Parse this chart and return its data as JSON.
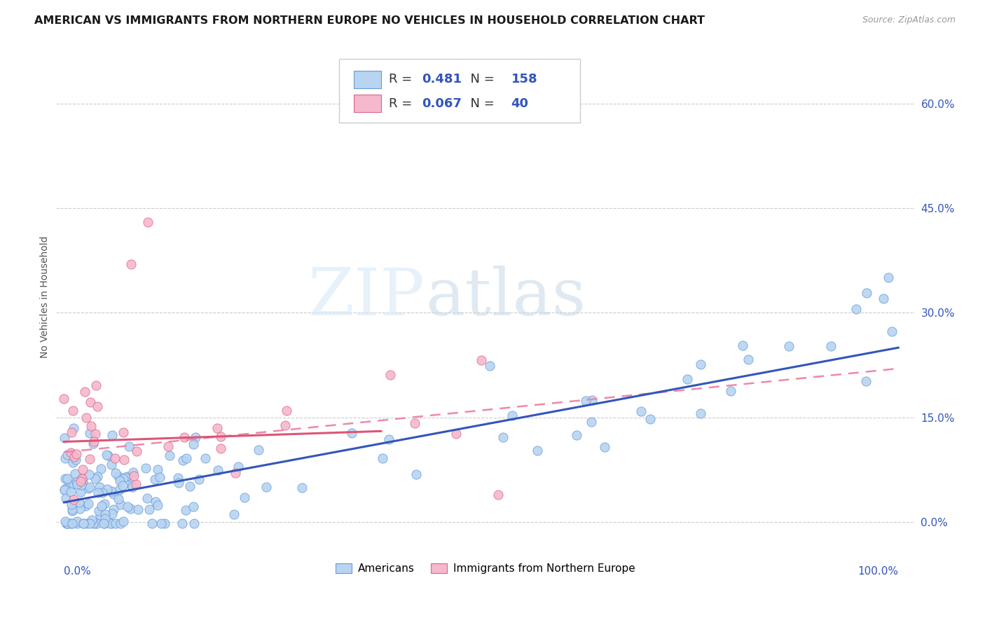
{
  "title": "AMERICAN VS IMMIGRANTS FROM NORTHERN EUROPE NO VEHICLES IN HOUSEHOLD CORRELATION CHART",
  "source": "Source: ZipAtlas.com",
  "ylabel": "No Vehicles in Household",
  "watermark_zip": "ZIP",
  "watermark_atlas": "atlas",
  "legend_blue_r_val": "0.481",
  "legend_blue_n_val": "158",
  "legend_pink_r_val": "0.067",
  "legend_pink_n_val": "40",
  "blue_label": "Americans",
  "pink_label": "Immigrants from Northern Europe",
  "xlim": [
    -0.01,
    1.02
  ],
  "ylim": [
    -0.035,
    0.68
  ],
  "yticks": [
    0.0,
    0.15,
    0.3,
    0.45,
    0.6
  ],
  "ytick_labels": [
    "0.0%",
    "15.0%",
    "30.0%",
    "45.0%",
    "60.0%"
  ],
  "x_left_label": "0.0%",
  "x_right_label": "100.0%",
  "blue_color": "#b8d4f0",
  "pink_color": "#f5b8cc",
  "blue_edge_color": "#6699dd",
  "pink_edge_color": "#dd6688",
  "blue_line_color": "#3355bb",
  "pink_solid_color": "#dd5577",
  "pink_dash_color": "#ee88aa",
  "background_color": "#ffffff",
  "grid_color": "#cccccc",
  "title_fontsize": 11.5,
  "tick_fontsize": 11,
  "ylabel_fontsize": 10,
  "legend_fontsize": 13,
  "blue_intercept": 0.028,
  "blue_slope": 0.222,
  "pink_solid_intercept": 0.115,
  "pink_solid_slope": 0.04,
  "pink_dash_intercept": 0.1,
  "pink_dash_slope": 0.12
}
